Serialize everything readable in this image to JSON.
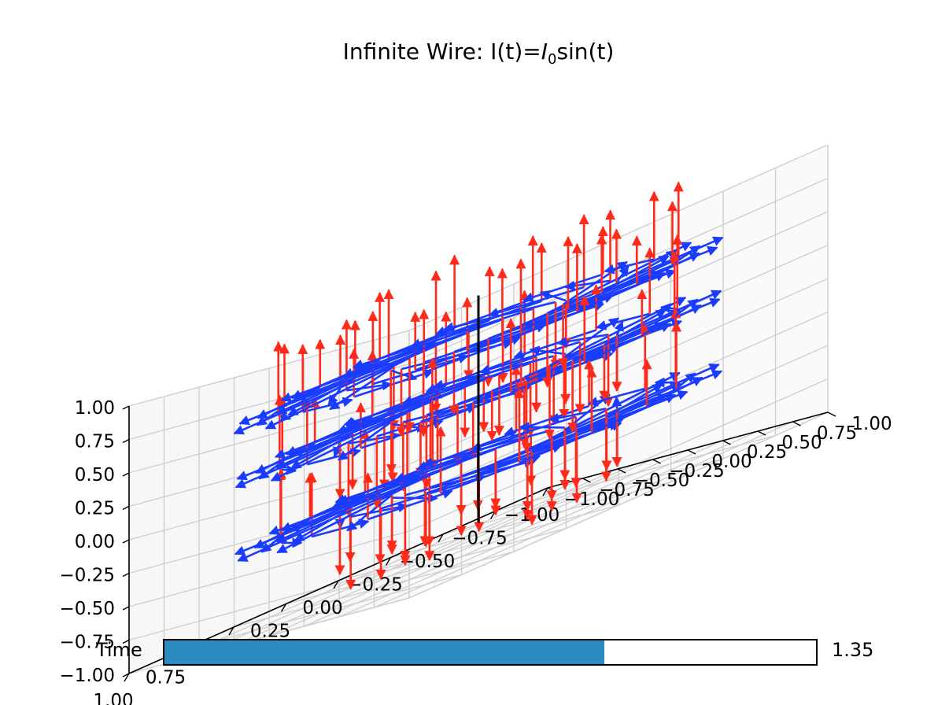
{
  "chart_data": {
    "type": "3d-quiver",
    "title": "Infinite Wire: I(t)=I₀sin(t)",
    "title_parts": {
      "prefix": "Infinite Wire: I(t)=",
      "symbol": "I",
      "subscript": "0",
      "suffix": "sin(t)"
    },
    "xticks": [
      "1.00",
      "0.75",
      "0.50",
      "0.25",
      "0.00",
      "−0.25",
      "−0.50",
      "−0.75",
      "−1.00"
    ],
    "yticks": [
      "1.00",
      "0.75",
      "0.50",
      "0.25",
      "0.00",
      "−0.25",
      "−0.50",
      "−0.75",
      "−1.00"
    ],
    "zticks": [
      "1.00",
      "0.75",
      "0.50",
      "0.25",
      "0.00",
      "−0.25",
      "−0.50",
      "−0.75",
      "−1.00"
    ],
    "xlim": [
      -1,
      1
    ],
    "ylim": [
      -1,
      1
    ],
    "zlim": [
      -1,
      1
    ],
    "grid": true,
    "series": [
      {
        "kind": "magnetic-field",
        "color": "#1a3cff",
        "radii": [
          0.35,
          0.55,
          0.8
        ],
        "heights": [
          -0.4,
          0.15,
          0.55
        ],
        "angular_count": 16
      },
      {
        "kind": "electric-field",
        "color": "#ff2a1a",
        "magnitude_scale": 0.55
      },
      {
        "kind": "wire",
        "color": "#000000",
        "x": 0,
        "y": 0,
        "z_range": [
          -1,
          1
        ]
      }
    ]
  },
  "slider": {
    "label": "Time",
    "value": "1.35",
    "min": 0,
    "max": 2,
    "fraction": 0.675,
    "fill_color": "#2b8cc1"
  }
}
